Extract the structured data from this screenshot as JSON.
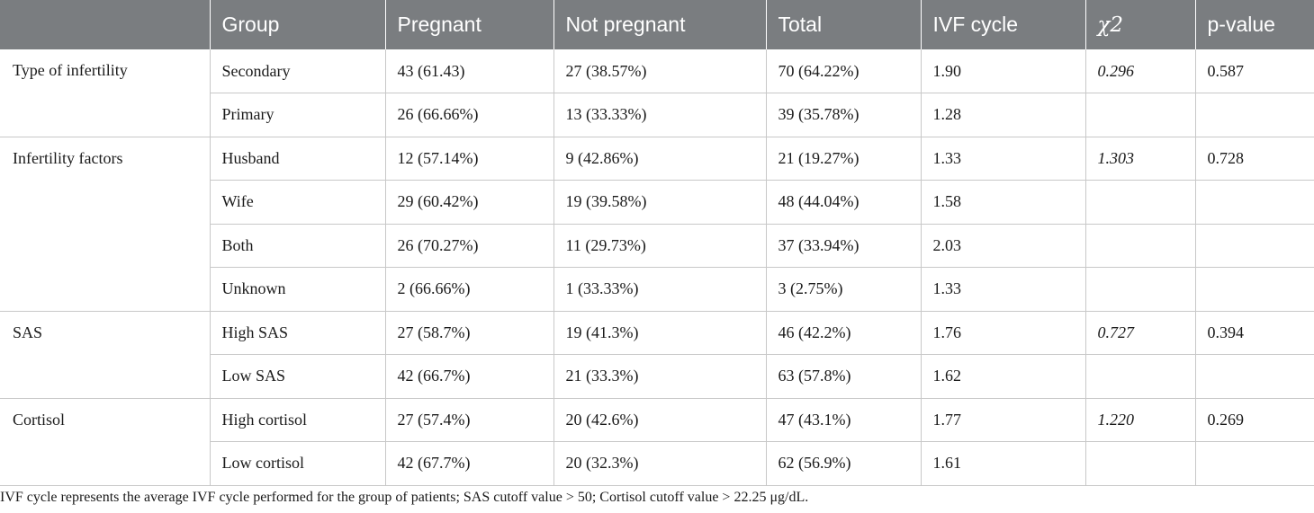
{
  "table": {
    "headers": [
      "",
      "Group",
      "Pregnant",
      "Not pregnant",
      "Total",
      "IVF cycle",
      "χ2",
      "p-value"
    ],
    "sections": [
      {
        "category": "Type of infertility",
        "chi2": "0.296",
        "p_value": "0.587",
        "rows": [
          {
            "group": "Secondary",
            "pregnant": "43 (61.43)",
            "not_pregnant": "27 (38.57%)",
            "total": "70 (64.22%)",
            "ivf_cycle": "1.90"
          },
          {
            "group": "Primary",
            "pregnant": "26 (66.66%)",
            "not_pregnant": "13 (33.33%)",
            "total": "39 (35.78%)",
            "ivf_cycle": "1.28"
          }
        ]
      },
      {
        "category": "Infertility factors",
        "chi2": "1.303",
        "p_value": "0.728",
        "rows": [
          {
            "group": "Husband",
            "pregnant": "12 (57.14%)",
            "not_pregnant": "9 (42.86%)",
            "total": "21 (19.27%)",
            "ivf_cycle": "1.33"
          },
          {
            "group": "Wife",
            "pregnant": "29 (60.42%)",
            "not_pregnant": "19 (39.58%)",
            "total": "48 (44.04%)",
            "ivf_cycle": "1.58"
          },
          {
            "group": "Both",
            "pregnant": "26 (70.27%)",
            "not_pregnant": "11 (29.73%)",
            "total": "37 (33.94%)",
            "ivf_cycle": "2.03"
          },
          {
            "group": "Unknown",
            "pregnant": "2 (66.66%)",
            "not_pregnant": "1 (33.33%)",
            "total": "3 (2.75%)",
            "ivf_cycle": "1.33"
          }
        ]
      },
      {
        "category": "SAS",
        "chi2": "0.727",
        "p_value": "0.394",
        "rows": [
          {
            "group": "High SAS",
            "pregnant": "27 (58.7%)",
            "not_pregnant": "19 (41.3%)",
            "total": "46 (42.2%)",
            "ivf_cycle": "1.76"
          },
          {
            "group": "Low SAS",
            "pregnant": "42 (66.7%)",
            "not_pregnant": "21 (33.3%)",
            "total": "63 (57.8%)",
            "ivf_cycle": "1.62"
          }
        ]
      },
      {
        "category": "Cortisol",
        "chi2": "1.220",
        "p_value": "0.269",
        "rows": [
          {
            "group": "High cortisol",
            "pregnant": "27 (57.4%)",
            "not_pregnant": "20 (42.6%)",
            "total": "47 (43.1%)",
            "ivf_cycle": "1.77"
          },
          {
            "group": "Low cortisol",
            "pregnant": "42 (67.7%)",
            "not_pregnant": "20 (32.3%)",
            "total": "62 (56.9%)",
            "ivf_cycle": "1.61"
          }
        ]
      }
    ]
  },
  "footnote": "IVF cycle represents the average IVF cycle performed for the group of patients; SAS cutoff value > 50; Cortisol cutoff value > 22.25 μg/dL.",
  "colors": {
    "header_bg": "#7a7d80",
    "header_text": "#ffffff",
    "grid_line": "#c8c8c8"
  }
}
